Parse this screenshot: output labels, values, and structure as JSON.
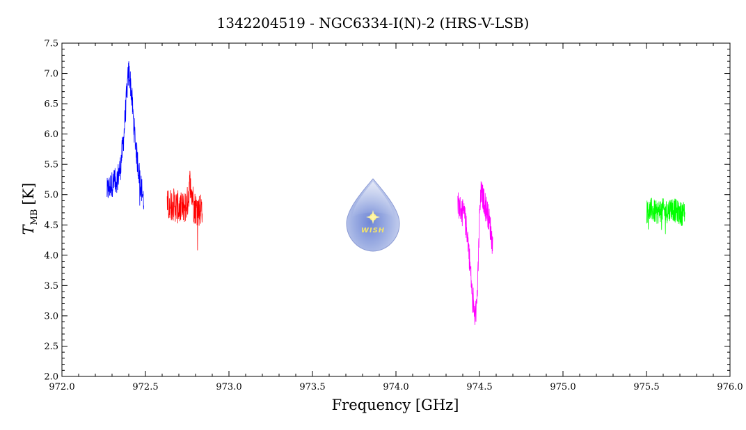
{
  "chart_data": {
    "type": "line",
    "title": "1342204519 - NGC6334-I(N)-2 (HRS-V-LSB)",
    "xlabel": "Frequency [GHz]",
    "ylabel_main": "T",
    "ylabel_sub": "MB",
    "ylabel_unit": "[K]",
    "xlim": [
      972.0,
      976.0
    ],
    "ylim": [
      2.0,
      7.5
    ],
    "xticks": [
      "972.0",
      "972.5",
      "973.0",
      "973.5",
      "974.0",
      "974.5",
      "975.0",
      "975.5",
      "976.0"
    ],
    "yticks": [
      "2.0",
      "2.5",
      "3.0",
      "3.5",
      "4.0",
      "4.5",
      "5.0",
      "5.5",
      "6.0",
      "6.5",
      "7.0",
      "7.5"
    ],
    "grid": false,
    "series": [
      {
        "color": "#0000ff",
        "x": [
          972.27,
          972.29,
          972.31,
          972.33,
          972.35,
          972.37,
          972.39,
          972.4,
          972.41,
          972.42,
          972.43,
          972.45,
          972.47,
          972.49
        ],
        "y": [
          5.05,
          5.15,
          5.2,
          5.25,
          5.45,
          5.95,
          6.75,
          7.05,
          6.85,
          6.55,
          6.15,
          5.6,
          5.2,
          4.9
        ]
      },
      {
        "color": "#ff0000",
        "x": [
          972.63,
          972.66,
          972.69,
          972.72,
          972.75,
          972.77,
          972.79,
          972.82,
          972.84
        ],
        "y": [
          4.8,
          4.85,
          4.8,
          4.75,
          4.85,
          5.25,
          4.8,
          4.75,
          4.8
        ]
      },
      {
        "color": "#ff00ff",
        "x": [
          974.37,
          974.39,
          974.41,
          974.43,
          974.45,
          974.46,
          974.47,
          974.48,
          974.49,
          974.5,
          974.51,
          974.52,
          974.54,
          974.56,
          974.58
        ],
        "y": [
          4.85,
          4.75,
          4.65,
          4.3,
          3.6,
          3.2,
          3.0,
          3.1,
          3.55,
          4.6,
          5.05,
          4.95,
          4.8,
          4.55,
          4.15
        ]
      },
      {
        "color": "#00ff00",
        "x": [
          975.5,
          975.53,
          975.56,
          975.59,
          975.62,
          975.65,
          975.68,
          975.71,
          975.73
        ],
        "y": [
          4.72,
          4.75,
          4.7,
          4.75,
          4.72,
          4.78,
          4.72,
          4.68,
          4.72
        ]
      }
    ]
  },
  "logo": {
    "text": "WISH",
    "colors": {
      "drop": "#9fb0e3",
      "star": "#f6ec7a"
    }
  }
}
